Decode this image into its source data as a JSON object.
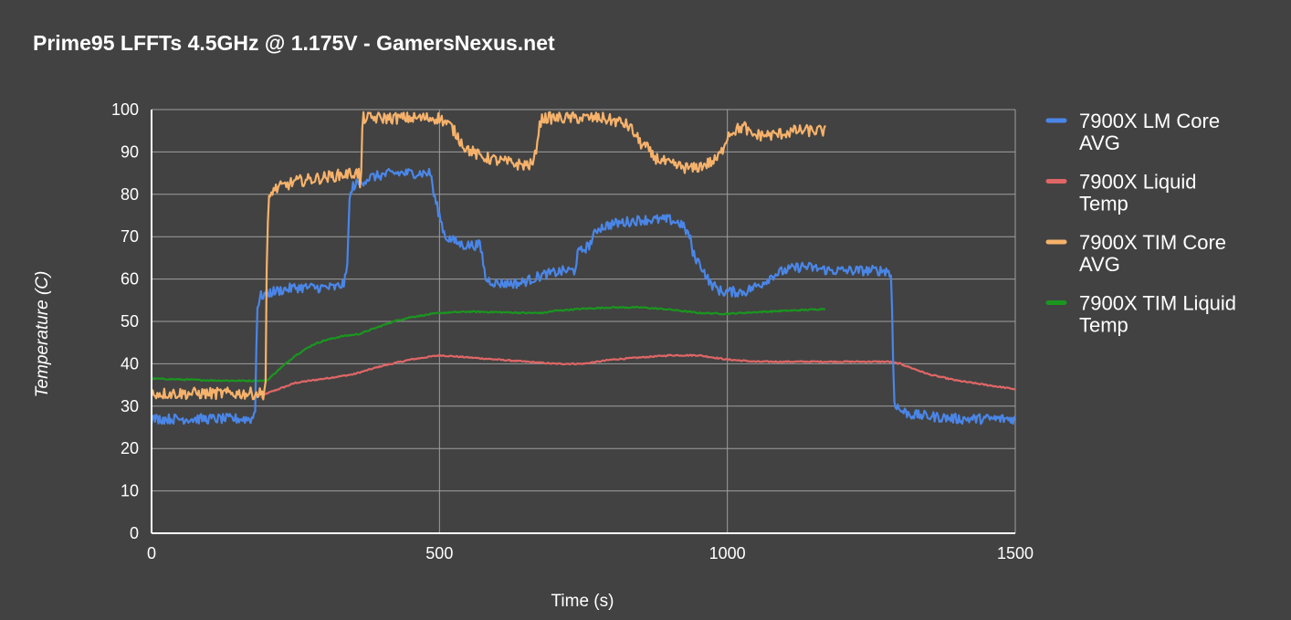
{
  "chart_data": {
    "type": "line",
    "title": "Prime95 LFFTs 4.5GHz @ 1.175V - GamersNexus.net",
    "xlabel": "Time (s)",
    "ylabel": "Temperature (C)",
    "xlim": [
      0,
      1500
    ],
    "ylim": [
      0,
      100
    ],
    "x_ticks": [
      0,
      500,
      1000,
      1500
    ],
    "y_ticks": [
      0,
      10,
      20,
      30,
      40,
      50,
      60,
      70,
      80,
      90,
      100
    ],
    "grid": true,
    "legend_position": "right",
    "background_color": "#424242",
    "grid_color": "#9e9e9e",
    "series": [
      {
        "name": "7900X LM Core AVG",
        "color": "#4a86e8",
        "noise": 1.2,
        "points": [
          [
            0,
            27
          ],
          [
            175,
            27
          ],
          [
            180,
            29
          ],
          [
            183,
            53
          ],
          [
            190,
            56
          ],
          [
            210,
            57
          ],
          [
            250,
            58
          ],
          [
            320,
            58
          ],
          [
            335,
            59
          ],
          [
            340,
            63
          ],
          [
            343,
            78
          ],
          [
            350,
            82
          ],
          [
            380,
            84
          ],
          [
            420,
            85
          ],
          [
            460,
            85
          ],
          [
            485,
            85
          ],
          [
            490,
            80
          ],
          [
            500,
            75
          ],
          [
            510,
            70
          ],
          [
            540,
            68
          ],
          [
            570,
            68
          ],
          [
            575,
            65
          ],
          [
            580,
            60
          ],
          [
            600,
            59
          ],
          [
            640,
            59
          ],
          [
            680,
            61
          ],
          [
            720,
            62
          ],
          [
            735,
            62
          ],
          [
            740,
            66
          ],
          [
            760,
            68
          ],
          [
            775,
            72
          ],
          [
            800,
            73
          ],
          [
            850,
            74
          ],
          [
            900,
            74
          ],
          [
            920,
            73
          ],
          [
            935,
            70
          ],
          [
            940,
            66
          ],
          [
            955,
            63
          ],
          [
            970,
            59
          ],
          [
            990,
            57
          ],
          [
            1030,
            57
          ],
          [
            1060,
            59
          ],
          [
            1080,
            61
          ],
          [
            1100,
            62
          ],
          [
            1130,
            63
          ],
          [
            1180,
            62
          ],
          [
            1250,
            62
          ],
          [
            1280,
            62
          ],
          [
            1285,
            60
          ],
          [
            1288,
            40
          ],
          [
            1290,
            31
          ],
          [
            1300,
            29
          ],
          [
            1320,
            28
          ],
          [
            1400,
            27
          ],
          [
            1500,
            27
          ]
        ]
      },
      {
        "name": "7900X Liquid Temp",
        "color": "#e06666",
        "noise": 0.15,
        "points": [
          [
            190,
            32
          ],
          [
            200,
            33
          ],
          [
            250,
            35.5
          ],
          [
            300,
            36.5
          ],
          [
            350,
            37.5
          ],
          [
            400,
            39.5
          ],
          [
            450,
            41
          ],
          [
            500,
            42
          ],
          [
            550,
            41.5
          ],
          [
            600,
            41
          ],
          [
            650,
            40.5
          ],
          [
            700,
            40
          ],
          [
            750,
            40
          ],
          [
            800,
            41
          ],
          [
            850,
            41.5
          ],
          [
            900,
            42
          ],
          [
            950,
            42
          ],
          [
            1000,
            41
          ],
          [
            1050,
            40.5
          ],
          [
            1100,
            40.5
          ],
          [
            1150,
            40.5
          ],
          [
            1200,
            40.5
          ],
          [
            1250,
            40.5
          ],
          [
            1280,
            40.5
          ],
          [
            1300,
            40
          ],
          [
            1350,
            37.5
          ],
          [
            1400,
            36
          ],
          [
            1450,
            35
          ],
          [
            1500,
            34
          ]
        ]
      },
      {
        "name": "7900X TIM Core AVG",
        "color": "#f6b26b",
        "noise": 1.4,
        "points": [
          [
            0,
            33
          ],
          [
            195,
            33
          ],
          [
            198,
            36
          ],
          [
            200,
            62
          ],
          [
            203,
            78
          ],
          [
            210,
            81
          ],
          [
            250,
            83
          ],
          [
            300,
            84
          ],
          [
            350,
            85
          ],
          [
            360,
            85
          ],
          [
            363,
            79
          ],
          [
            365,
            92
          ],
          [
            367,
            98
          ],
          [
            400,
            98
          ],
          [
            450,
            98
          ],
          [
            500,
            98
          ],
          [
            520,
            96
          ],
          [
            545,
            91
          ],
          [
            570,
            89
          ],
          [
            600,
            88
          ],
          [
            640,
            87
          ],
          [
            660,
            87
          ],
          [
            665,
            88
          ],
          [
            670,
            93
          ],
          [
            675,
            97
          ],
          [
            680,
            98
          ],
          [
            730,
            98
          ],
          [
            780,
            98
          ],
          [
            815,
            97
          ],
          [
            830,
            96
          ],
          [
            840,
            94
          ],
          [
            850,
            92
          ],
          [
            860,
            91
          ],
          [
            870,
            89
          ],
          [
            900,
            87
          ],
          [
            940,
            86
          ],
          [
            980,
            88
          ],
          [
            990,
            90
          ],
          [
            1000,
            94
          ],
          [
            1010,
            95
          ],
          [
            1030,
            96
          ],
          [
            1040,
            94
          ],
          [
            1080,
            94
          ],
          [
            1120,
            95
          ],
          [
            1170,
            95
          ]
        ]
      },
      {
        "name": "7900X TIM Liquid Temp",
        "color": "#1a961f",
        "noise": 0.15,
        "points": [
          [
            0,
            36.5
          ],
          [
            50,
            36.3
          ],
          [
            100,
            36.1
          ],
          [
            150,
            36
          ],
          [
            200,
            36
          ],
          [
            220,
            38.5
          ],
          [
            250,
            42
          ],
          [
            280,
            44.5
          ],
          [
            300,
            45.5
          ],
          [
            330,
            46.5
          ],
          [
            360,
            47
          ],
          [
            380,
            48
          ],
          [
            400,
            49
          ],
          [
            420,
            50
          ],
          [
            450,
            51
          ],
          [
            500,
            52
          ],
          [
            550,
            52.3
          ],
          [
            600,
            52.2
          ],
          [
            650,
            52
          ],
          [
            680,
            52
          ],
          [
            700,
            52.5
          ],
          [
            750,
            53
          ],
          [
            800,
            53.3
          ],
          [
            850,
            53.3
          ],
          [
            900,
            52.8
          ],
          [
            950,
            52
          ],
          [
            1000,
            51.8
          ],
          [
            1050,
            52.2
          ],
          [
            1100,
            52.5
          ],
          [
            1150,
            52.8
          ],
          [
            1170,
            53
          ]
        ]
      }
    ],
    "legend": [
      [
        "7900X LM Core",
        "AVG"
      ],
      [
        "7900X Liquid",
        "Temp"
      ],
      [
        "7900X TIM Core",
        "AVG"
      ],
      [
        "7900X TIM Liquid",
        "Temp"
      ]
    ]
  }
}
